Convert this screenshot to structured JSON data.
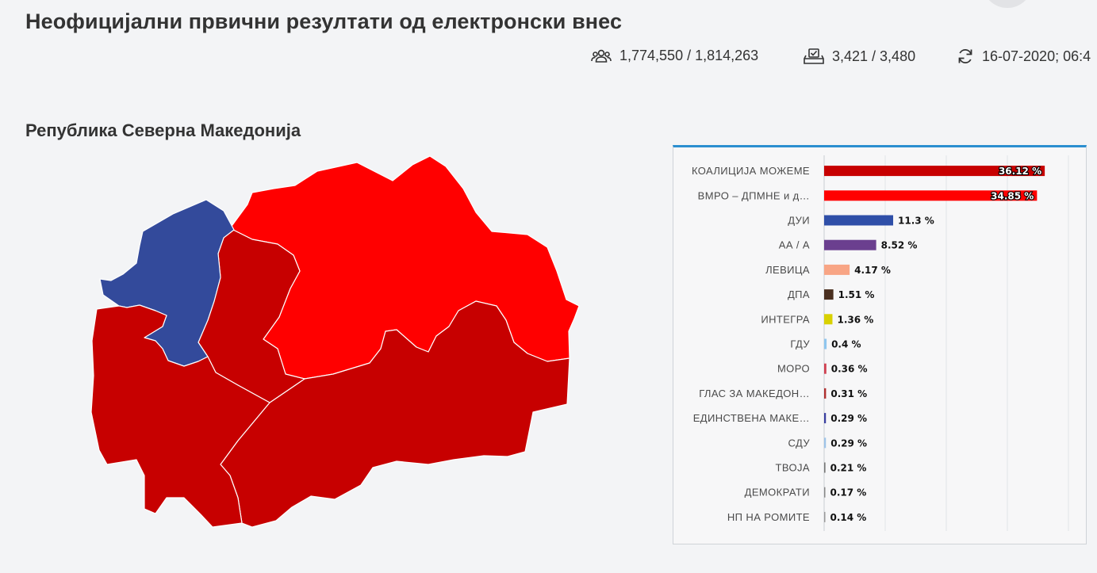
{
  "header": {
    "title": "Неофицијални првични резултати од електронски внес"
  },
  "stats": {
    "voters": {
      "icon": "people-icon",
      "text": "1,774,550 / 1,814,263"
    },
    "stations": {
      "icon": "ballot-box-icon",
      "text": "3,421 / 3,480"
    },
    "updated": {
      "icon": "refresh-icon",
      "text": "16-07-2020; 06:4"
    }
  },
  "section": {
    "title": "Република Северна Македонија"
  },
  "map": {
    "colors": {
      "koalicija": "#c70000",
      "vmro": "#ff0000",
      "dui": "#334a9b"
    }
  },
  "chart_data": {
    "type": "bar",
    "orientation": "horizontal",
    "xlim": [
      0,
      40
    ],
    "categories": [
      "КОАЛИЦИЈА МОЖЕМЕ",
      "ВМРО – ДПМНЕ и д…",
      "ДУИ",
      "АА / А",
      "ЛЕВИЦА",
      "ДПА",
      "ИНТЕГРА",
      "ГДУ",
      "МОРО",
      "ГЛАС ЗА МАКЕДОН…",
      "ЕДИНСТВЕНА МАКЕ…",
      "СДУ",
      "ТВОЈА",
      "ДЕМОКРАТИ",
      "НП НА РОМИТЕ"
    ],
    "values": [
      36.12,
      34.85,
      11.3,
      8.52,
      4.17,
      1.51,
      1.36,
      0.4,
      0.36,
      0.31,
      0.29,
      0.29,
      0.21,
      0.17,
      0.14
    ],
    "labels": [
      "36.12 %",
      "34.85 %",
      "11.3 %",
      "8.52 %",
      "4.17 %",
      "1.51 %",
      "1.36 %",
      "0.4 %",
      "0.36 %",
      "0.31 %",
      "0.29 %",
      "0.29 %",
      "0.21 %",
      "0.17 %",
      "0.14 %"
    ],
    "colors": [
      "#c70000",
      "#ff0000",
      "#2f4fa8",
      "#6b3f8f",
      "#f8a585",
      "#4a2f1f",
      "#d9d100",
      "#8fc6ee",
      "#d04050",
      "#b03030",
      "#3a3fa0",
      "#9ec3e8",
      "#777777",
      "#888888",
      "#999999"
    ],
    "labels_inside": [
      true,
      true,
      false,
      false,
      false,
      false,
      false,
      false,
      false,
      false,
      false,
      false,
      false,
      false,
      false
    ],
    "grid": true
  }
}
